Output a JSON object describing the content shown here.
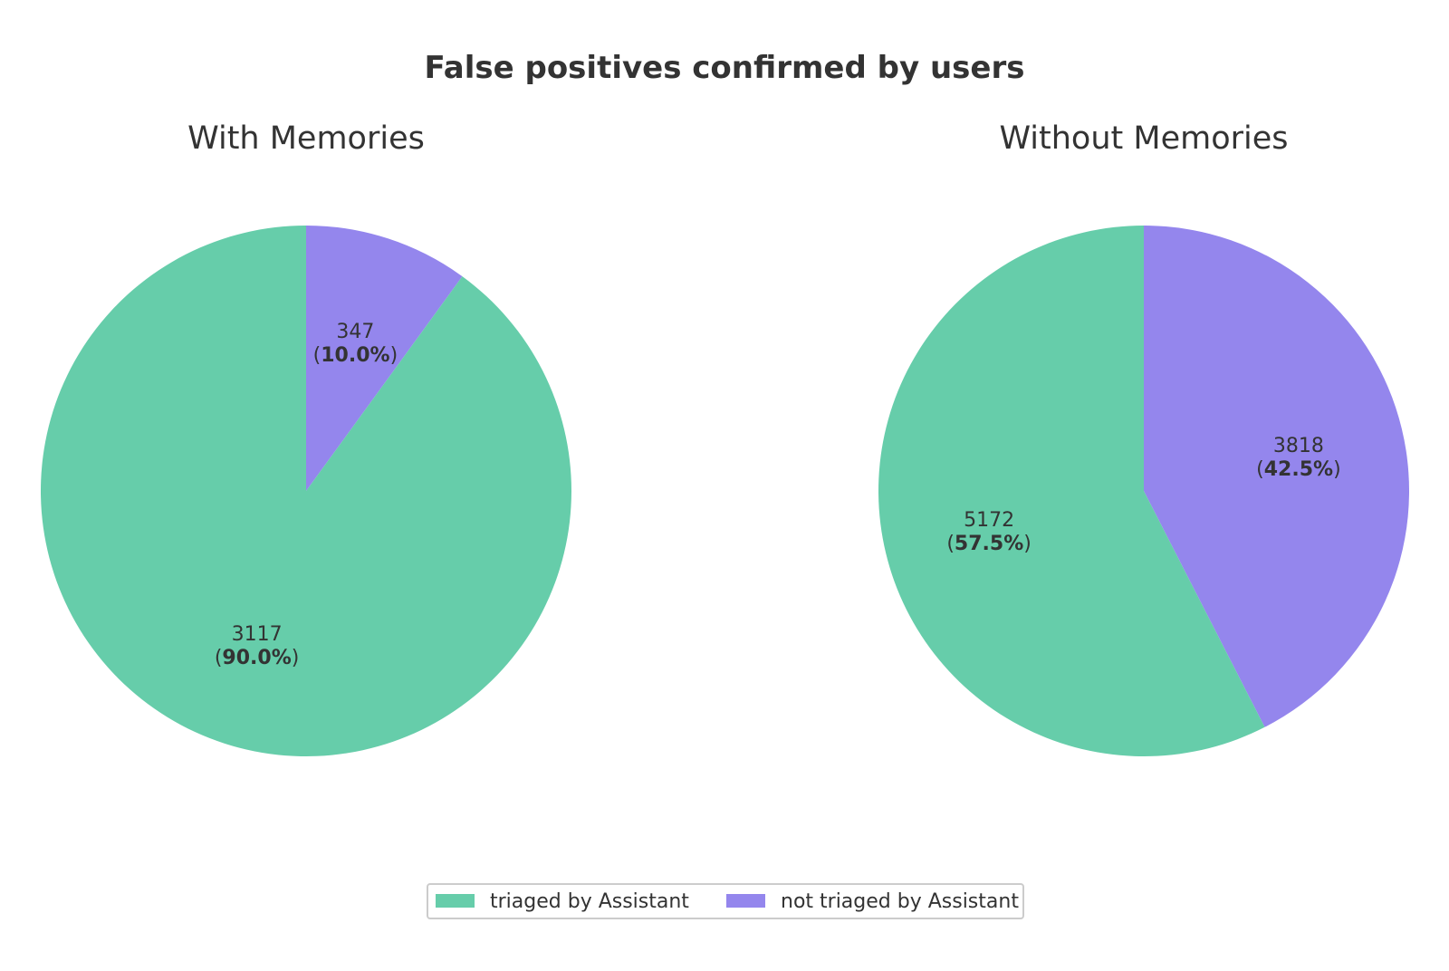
{
  "chart_data": {
    "title": "False positives confirmed by users",
    "legend_placement": "bottom-center",
    "colors": {
      "triaged by Assistant": "#66CDAA",
      "not triaged by Assistant": "#9486ED"
    },
    "legend": [
      "triaged by Assistant",
      "not triaged by Assistant"
    ],
    "pies": [
      {
        "type": "pie",
        "title": "With Memories",
        "start": "top",
        "direction": "clockwise",
        "slices": [
          {
            "label": "not triaged by Assistant",
            "value": 347,
            "percent": "10.0%"
          },
          {
            "label": "triaged by Assistant",
            "value": 3117,
            "percent": "90.0%"
          }
        ]
      },
      {
        "type": "pie",
        "title": "Without Memories",
        "start": "top",
        "direction": "clockwise",
        "slices": [
          {
            "label": "not triaged by Assistant",
            "value": 3818,
            "percent": "42.5%"
          },
          {
            "label": "triaged by Assistant",
            "value": 5172,
            "percent": "57.5%"
          }
        ]
      }
    ]
  }
}
